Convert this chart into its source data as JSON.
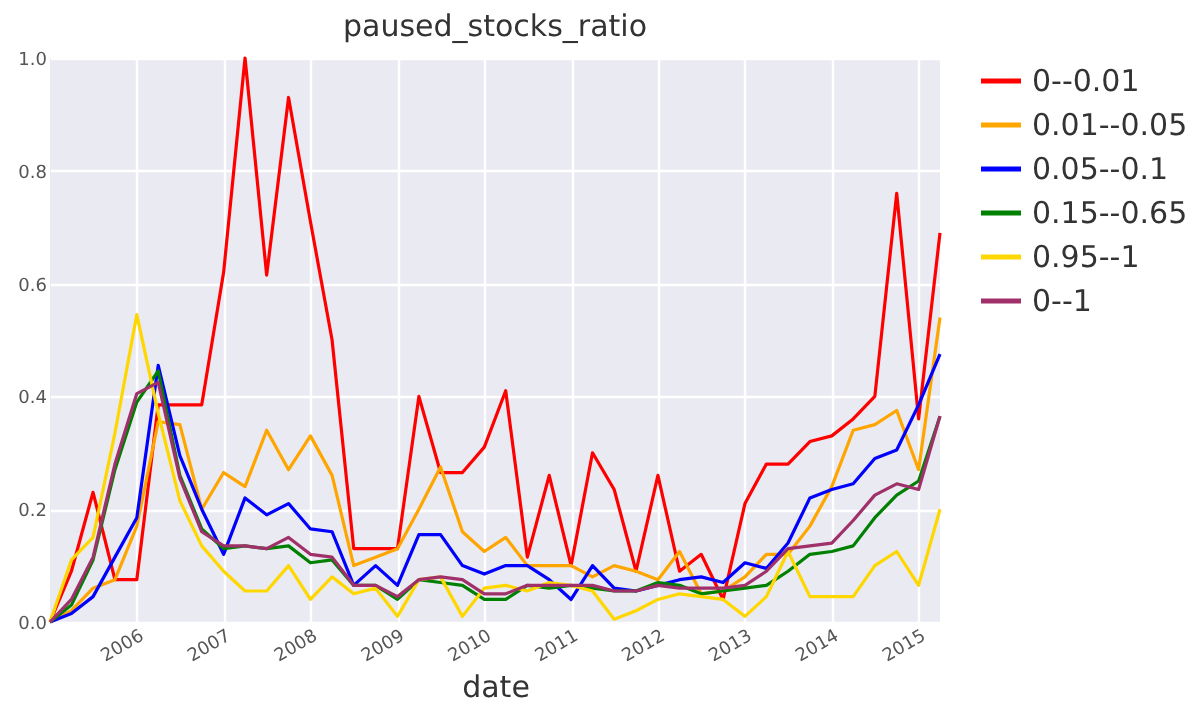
{
  "chart_data": {
    "type": "line",
    "title": "paused_stocks_ratio",
    "xlabel": "date",
    "x": [
      "2005-01",
      "2005-04",
      "2005-07",
      "2005-10",
      "2006-01",
      "2006-04",
      "2006-07",
      "2006-10",
      "2007-01",
      "2007-04",
      "2007-07",
      "2007-10",
      "2008-01",
      "2008-04",
      "2008-07",
      "2008-10",
      "2009-01",
      "2009-04",
      "2009-07",
      "2009-10",
      "2010-01",
      "2010-04",
      "2010-07",
      "2010-10",
      "2011-01",
      "2011-04",
      "2011-07",
      "2011-10",
      "2012-01",
      "2012-04",
      "2012-07",
      "2012-10",
      "2013-01",
      "2013-04",
      "2013-07",
      "2013-10",
      "2014-01",
      "2014-04",
      "2014-07",
      "2014-10",
      "2015-01",
      "2015-04"
    ],
    "series": [
      {
        "name": "0--0.01",
        "color": "#ff0000",
        "values": [
          0,
          0.09,
          0.23,
          0.075,
          0.075,
          0.385,
          0.385,
          0.385,
          0.62,
          1.0,
          0.615,
          0.93,
          0.71,
          0.5,
          0.13,
          0.13,
          0.13,
          0.4,
          0.265,
          0.265,
          0.31,
          0.41,
          0.115,
          0.26,
          0.1,
          0.3,
          0.235,
          0.09,
          0.26,
          0.09,
          0.12,
          0.04,
          0.21,
          0.28,
          0.28,
          0.32,
          0.33,
          0.36,
          0.4,
          0.76,
          0.36,
          0.69
        ]
      },
      {
        "name": "0.01--0.05",
        "color": "#ffa500",
        "values": [
          0,
          0.02,
          0.06,
          0.075,
          0.17,
          0.355,
          0.35,
          0.2,
          0.265,
          0.24,
          0.34,
          0.27,
          0.33,
          0.26,
          0.1,
          0.115,
          0.13,
          0.2,
          0.275,
          0.16,
          0.125,
          0.15,
          0.1,
          0.1,
          0.1,
          0.08,
          0.1,
          0.09,
          0.075,
          0.125,
          0.05,
          0.055,
          0.08,
          0.12,
          0.12,
          0.17,
          0.24,
          0.34,
          0.35,
          0.375,
          0.27,
          0.54
        ]
      },
      {
        "name": "0.05--0.1",
        "color": "#0000ff",
        "values": [
          0,
          0.015,
          0.045,
          0.115,
          0.185,
          0.455,
          0.295,
          0.2,
          0.12,
          0.22,
          0.19,
          0.21,
          0.165,
          0.16,
          0.065,
          0.1,
          0.065,
          0.155,
          0.155,
          0.1,
          0.085,
          0.1,
          0.1,
          0.075,
          0.04,
          0.1,
          0.06,
          0.055,
          0.065,
          0.075,
          0.08,
          0.07,
          0.105,
          0.095,
          0.14,
          0.22,
          0.235,
          0.245,
          0.29,
          0.305,
          0.385,
          0.475
        ]
      },
      {
        "name": "0.15--0.65",
        "color": "#008000",
        "values": [
          0,
          0.03,
          0.11,
          0.27,
          0.39,
          0.445,
          0.26,
          0.165,
          0.13,
          0.135,
          0.13,
          0.135,
          0.105,
          0.11,
          0.065,
          0.065,
          0.04,
          0.075,
          0.07,
          0.065,
          0.04,
          0.04,
          0.065,
          0.06,
          0.065,
          0.06,
          0.055,
          0.055,
          0.07,
          0.065,
          0.05,
          0.055,
          0.06,
          0.065,
          0.09,
          0.12,
          0.125,
          0.135,
          0.185,
          0.225,
          0.25,
          0.365
        ]
      },
      {
        "name": "0.95--1",
        "color": "#ffd700",
        "values": [
          0,
          0.11,
          0.15,
          0.335,
          0.545,
          0.37,
          0.215,
          0.135,
          0.09,
          0.055,
          0.055,
          0.1,
          0.04,
          0.08,
          0.05,
          0.06,
          0.01,
          0.075,
          0.08,
          0.01,
          0.06,
          0.065,
          0.055,
          0.07,
          0.065,
          0.055,
          0.005,
          0.02,
          0.04,
          0.05,
          0.045,
          0.04,
          0.01,
          0.045,
          0.125,
          0.045,
          0.045,
          0.045,
          0.1,
          0.125,
          0.065,
          0.2
        ]
      },
      {
        "name": "0--1",
        "color": "#a0306a",
        "values": [
          0,
          0.04,
          0.115,
          0.28,
          0.405,
          0.425,
          0.255,
          0.16,
          0.135,
          0.135,
          0.13,
          0.15,
          0.12,
          0.115,
          0.065,
          0.065,
          0.045,
          0.075,
          0.08,
          0.075,
          0.05,
          0.05,
          0.065,
          0.065,
          0.065,
          0.065,
          0.055,
          0.055,
          0.065,
          0.06,
          0.06,
          0.06,
          0.065,
          0.09,
          0.13,
          0.135,
          0.14,
          0.18,
          0.225,
          0.245,
          0.235,
          0.365
        ]
      }
    ],
    "xlim": [
      "2005-01",
      "2015-04"
    ],
    "xticks": [
      "2006",
      "2007",
      "2008",
      "2009",
      "2010",
      "2011",
      "2012",
      "2013",
      "2014",
      "2015"
    ],
    "ylim": [
      0,
      1
    ],
    "yticks": [
      {
        "value": 0,
        "label": "0.0"
      },
      0.2,
      0.4,
      0.6,
      0.8,
      {
        "value": 1,
        "label": "1.0"
      }
    ],
    "grid": true,
    "legend": "top right"
  }
}
